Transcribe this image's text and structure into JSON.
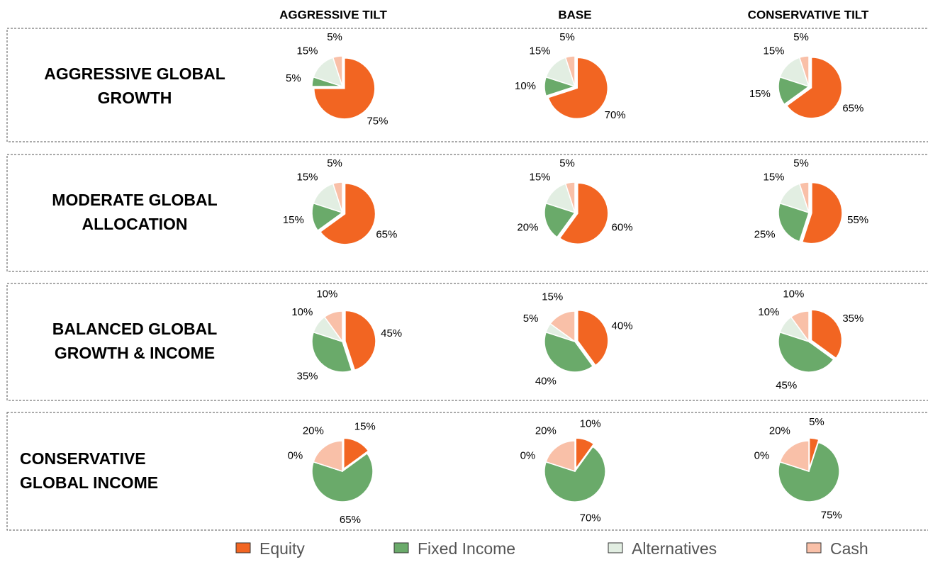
{
  "column_headers": [
    "AGGRESSIVE TILT",
    "BASE",
    "CONSERVATIVE TILT"
  ],
  "row_labels": [
    [
      "AGGRESSIVE GLOBAL",
      "GROWTH"
    ],
    [
      "MODERATE GLOBAL",
      "ALLOCATION"
    ],
    [
      "BALANCED GLOBAL",
      "GROWTH & INCOME"
    ],
    [
      "CONSERVATIVE",
      "GLOBAL INCOME"
    ]
  ],
  "legend": [
    {
      "name": "Equity",
      "color": "#f26522"
    },
    {
      "name": "Fixed Income",
      "color": "#6aaa6a"
    },
    {
      "name": "Alternatives",
      "color": "#e2eee2"
    },
    {
      "name": "Cash",
      "color": "#f9c0a8"
    }
  ],
  "chart_data": [
    {
      "type": "pie",
      "values": [
        75,
        5,
        15,
        5
      ],
      "value_labels": [
        "75%",
        "5%",
        "15%",
        "5%"
      ]
    },
    {
      "type": "pie",
      "values": [
        70,
        10,
        15,
        5
      ],
      "value_labels": [
        "70%",
        "10%",
        "15%",
        "5%"
      ]
    },
    {
      "type": "pie",
      "values": [
        65,
        15,
        15,
        5
      ],
      "value_labels": [
        "65%",
        "15%",
        "15%",
        "5%"
      ]
    },
    {
      "type": "pie",
      "values": [
        65,
        15,
        15,
        5
      ],
      "value_labels": [
        "65%",
        "15%",
        "15%",
        "5%"
      ]
    },
    {
      "type": "pie",
      "values": [
        60,
        20,
        15,
        5
      ],
      "value_labels": [
        "60%",
        "20%",
        "15%",
        "5%"
      ]
    },
    {
      "type": "pie",
      "values": [
        55,
        25,
        15,
        5
      ],
      "value_labels": [
        "55%",
        "25%",
        "15%",
        "5%"
      ]
    },
    {
      "type": "pie",
      "values": [
        45,
        35,
        10,
        10
      ],
      "value_labels": [
        "45%",
        "35%",
        "10%",
        "10%"
      ]
    },
    {
      "type": "pie",
      "values": [
        40,
        40,
        5,
        15
      ],
      "value_labels": [
        "40%",
        "40%",
        "5%",
        "15%"
      ]
    },
    {
      "type": "pie",
      "values": [
        35,
        45,
        10,
        10
      ],
      "value_labels": [
        "35%",
        "45%",
        "10%",
        "10%"
      ]
    },
    {
      "type": "pie",
      "values": [
        15,
        65,
        0,
        20
      ],
      "value_labels": [
        "15%",
        "65%",
        "0%",
        "20%"
      ]
    },
    {
      "type": "pie",
      "values": [
        10,
        70,
        0,
        20
      ],
      "value_labels": [
        "10%",
        "70%",
        "0%",
        "20%"
      ]
    },
    {
      "type": "pie",
      "values": [
        5,
        75,
        0,
        20
      ],
      "value_labels": [
        "5%",
        "75%",
        "0%",
        "20%"
      ]
    }
  ]
}
